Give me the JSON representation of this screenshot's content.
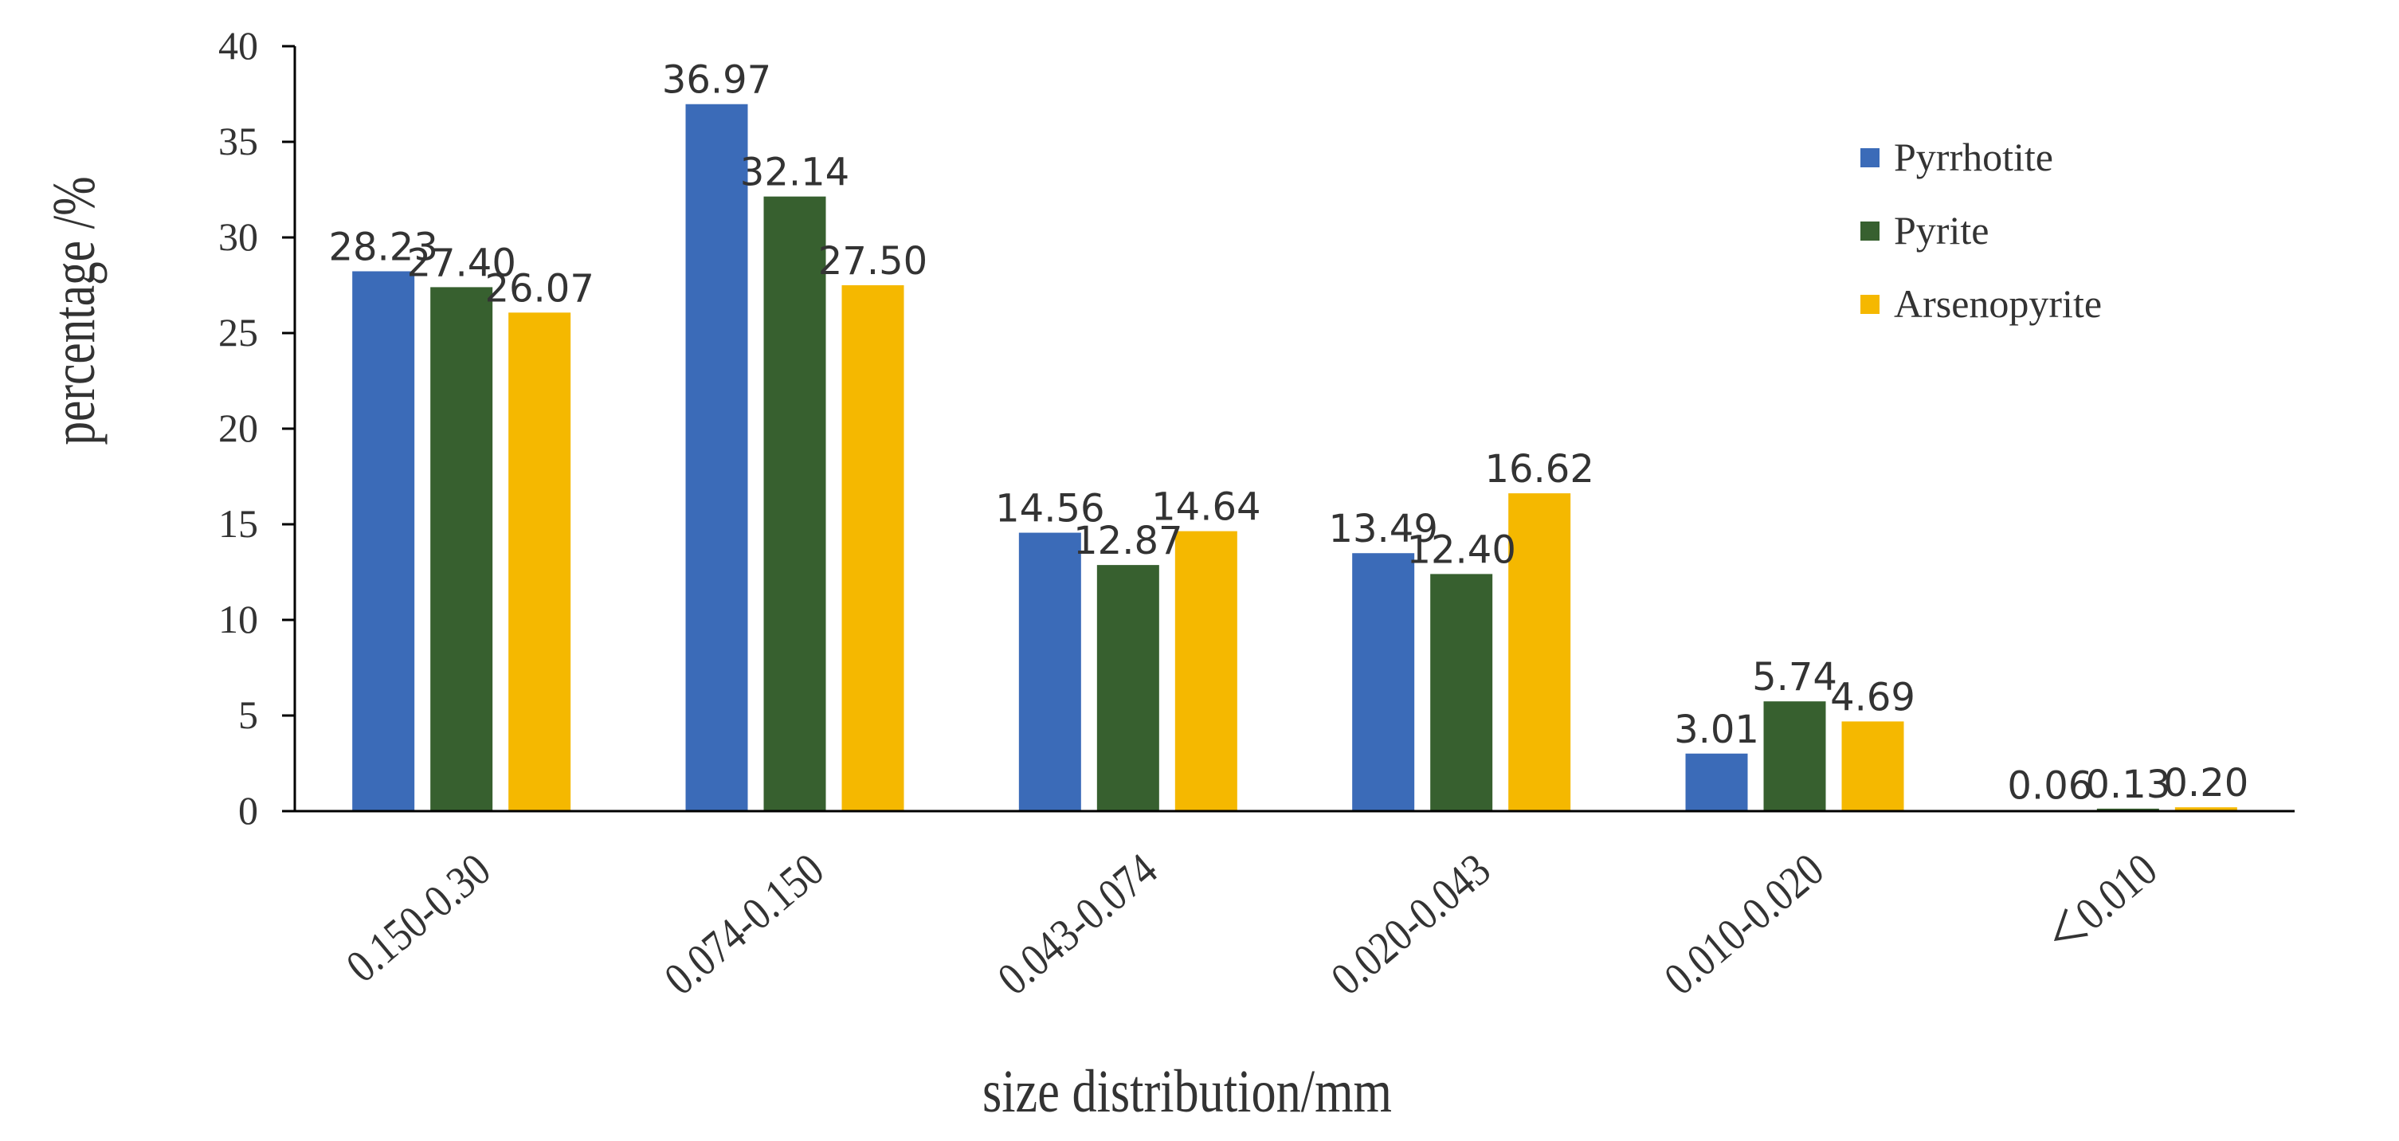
{
  "chart_data": {
    "type": "bar",
    "title": "",
    "xlabel": "size distribution/mm",
    "ylabel": "percentage /%",
    "ylim": [
      0,
      40
    ],
    "yticks": [
      0,
      5,
      10,
      15,
      20,
      25,
      30,
      35,
      40
    ],
    "grid": false,
    "legend_position": "top-right",
    "categories": [
      "0.150-0.30",
      "0.074-0.150",
      "0.043-0.074",
      "0.020-0.043",
      "0.010-0.020",
      "＜0.010"
    ],
    "series": [
      {
        "name": "Pyrrhotite",
        "color": "#3b6bb8",
        "values": [
          28.23,
          36.97,
          14.56,
          13.49,
          3.01,
          0.06
        ],
        "labels": [
          "28.23",
          "36.97",
          "14.56",
          "13.49",
          "3.01",
          "0.06"
        ]
      },
      {
        "name": "Pyrite",
        "color": "#37602f",
        "values": [
          27.4,
          32.14,
          12.87,
          12.4,
          5.74,
          0.13
        ],
        "labels": [
          "27.40",
          "32.14",
          "12.87",
          "12.40",
          "5.74",
          "0.13"
        ]
      },
      {
        "name": "Arsenopyrite",
        "color": "#f5b800",
        "values": [
          26.07,
          27.5,
          14.64,
          16.62,
          4.69,
          0.2
        ],
        "labels": [
          "26.07",
          "27.50",
          "14.64",
          "16.62",
          "4.69",
          "0.20"
        ]
      }
    ]
  }
}
